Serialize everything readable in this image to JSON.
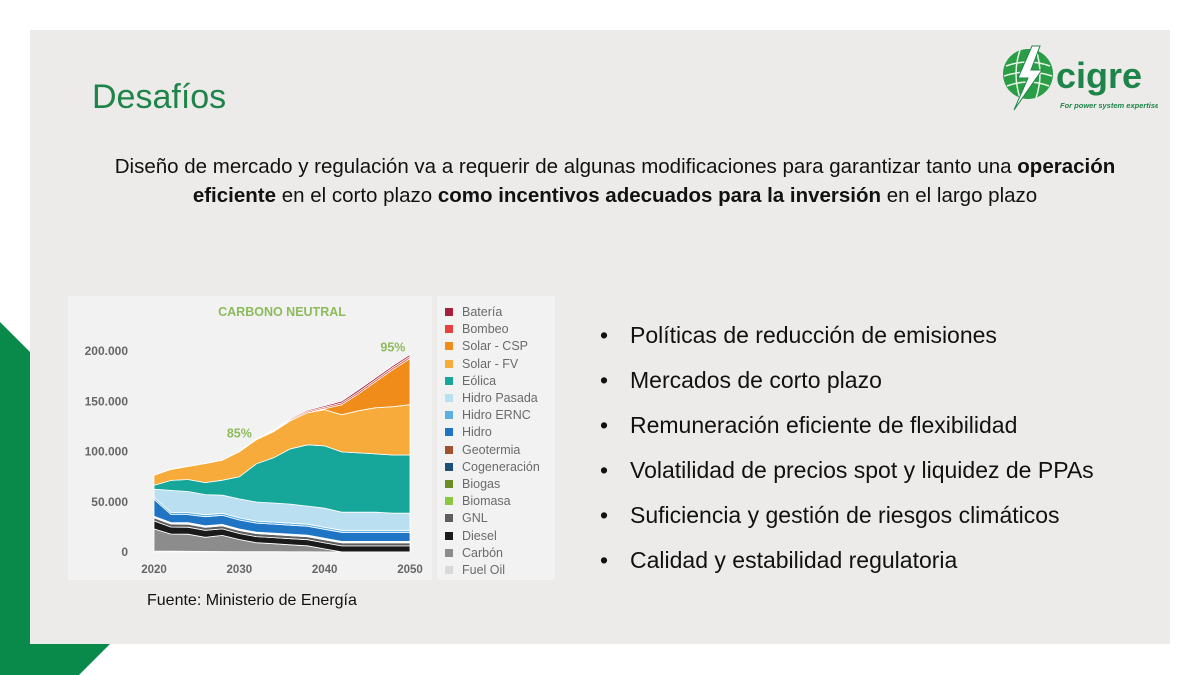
{
  "slide": {
    "title": "Desafíos",
    "intro": {
      "part1": "Diseño de mercado y regulación va a requerir de algunas modificaciones para garantizar tanto una",
      "bold1": "operación eficiente",
      "part2": "en el corto plazo",
      "bold2": "como incentivos adecuados para la inversión",
      "part3": "en el largo plazo"
    },
    "bullets": [
      "Políticas de reducción de emisiones",
      "Mercados de corto plazo",
      "Remuneración eficiente de flexibilidad",
      "Volatilidad de precios spot y liquidez de PPAs",
      "Suficiencia y gestión de riesgos climáticos",
      "Calidad y estabilidad regulatoria"
    ],
    "source": "Fuente: Ministerio de Energía"
  },
  "logo": {
    "text": "cigre",
    "tagline": "For power system expertise",
    "color": "#1e8449"
  },
  "colors": {
    "accent_green": "#1e8449",
    "corner_green": "#0a8a4a"
  },
  "chart_data": {
    "type": "area",
    "title": "CARBONO NEUTRAL",
    "x": [
      2020,
      2022,
      2024,
      2026,
      2028,
      2030,
      2032,
      2034,
      2036,
      2038,
      2040,
      2042,
      2044,
      2046,
      2048,
      2050
    ],
    "x_ticks": [
      "2020",
      "2030",
      "2040",
      "2050"
    ],
    "y_ticks": [
      "0",
      "50.000",
      "100.000",
      "150.000",
      "200.000"
    ],
    "ylim": [
      0,
      215000
    ],
    "annotations": [
      {
        "text": "85%",
        "x": 2030
      },
      {
        "text": "95%",
        "x": 2048
      }
    ],
    "series": [
      {
        "name": "Fuel Oil",
        "color": "#d9d9d9",
        "values": [
          1000,
          800,
          700,
          600,
          500,
          400,
          300,
          300,
          200,
          200,
          100,
          100,
          100,
          100,
          100,
          100
        ]
      },
      {
        "name": "Carbón",
        "color": "#8c8c8c",
        "values": [
          22000,
          17000,
          17000,
          14000,
          16000,
          12000,
          9000,
          8000,
          7000,
          6000,
          3000,
          0,
          0,
          0,
          0,
          0
        ]
      },
      {
        "name": "Diesel",
        "color": "#1a1a1a",
        "values": [
          8000,
          7000,
          7000,
          7000,
          6500,
          6000,
          6000,
          6000,
          6000,
          6000,
          6000,
          6000,
          6000,
          6000,
          6000,
          6000
        ]
      },
      {
        "name": "GNL",
        "color": "#5e5e5e",
        "values": [
          3000,
          3000,
          3000,
          3000,
          3000,
          3000,
          3000,
          3000,
          3000,
          3000,
          3000,
          3000,
          3000,
          3000,
          3000,
          3000
        ]
      },
      {
        "name": "Biomasa",
        "color": "#8dc63f",
        "values": [
          500,
          500,
          500,
          500,
          500,
          500,
          500,
          500,
          500,
          500,
          500,
          500,
          500,
          500,
          500,
          500
        ]
      },
      {
        "name": "Biogas",
        "color": "#6b8e23",
        "values": [
          300,
          300,
          300,
          300,
          300,
          300,
          300,
          300,
          300,
          300,
          300,
          300,
          300,
          300,
          300,
          300
        ]
      },
      {
        "name": "Cogeneración",
        "color": "#1f4e79",
        "values": [
          300,
          300,
          300,
          300,
          300,
          300,
          300,
          300,
          300,
          300,
          300,
          300,
          300,
          300,
          300,
          300
        ]
      },
      {
        "name": "Geotermia",
        "color": "#a0522d",
        "values": [
          400,
          400,
          400,
          400,
          400,
          400,
          400,
          400,
          400,
          400,
          400,
          400,
          400,
          400,
          400,
          400
        ]
      },
      {
        "name": "Hidro",
        "color": "#1f75c4",
        "values": [
          17000,
          8000,
          8000,
          9000,
          9000,
          9000,
          9000,
          9000,
          9000,
          9000,
          9000,
          9000,
          9000,
          9000,
          9000,
          9000
        ]
      },
      {
        "name": "Hidro ERNC",
        "color": "#5aaee0",
        "values": [
          2000,
          2000,
          2000,
          2000,
          2000,
          2000,
          2000,
          2000,
          2000,
          2000,
          2000,
          2000,
          2000,
          2000,
          2000,
          2000
        ]
      },
      {
        "name": "Hidro Pasada",
        "color": "#b9dff0",
        "values": [
          8000,
          22000,
          21000,
          20000,
          18000,
          19000,
          19000,
          19000,
          19000,
          18000,
          19000,
          18000,
          18000,
          18000,
          17000,
          17000
        ]
      },
      {
        "name": "Eólica",
        "color": "#17a79a",
        "values": [
          4000,
          10000,
          12000,
          12000,
          15000,
          22000,
          38000,
          45000,
          55000,
          61000,
          62000,
          60000,
          59000,
          58000,
          58000,
          58000
        ]
      },
      {
        "name": "Solar - FV",
        "color": "#f7ab3a",
        "values": [
          10000,
          11000,
          13000,
          19000,
          20000,
          25000,
          24000,
          26000,
          28000,
          32000,
          36000,
          37000,
          42000,
          46000,
          48000,
          50000
        ]
      },
      {
        "name": "Solar - CSP",
        "color": "#f08c1a",
        "values": [
          0,
          0,
          0,
          0,
          0,
          0,
          0,
          0,
          0,
          0,
          1000,
          10000,
          17000,
          26000,
          37000,
          46000
        ]
      },
      {
        "name": "Bombeo",
        "color": "#e8433a",
        "values": [
          0,
          0,
          0,
          0,
          0,
          0,
          500,
          800,
          1000,
          1200,
          1500,
          1800,
          2000,
          2000,
          2000,
          2000
        ]
      },
      {
        "name": "Batería",
        "color": "#a3203a",
        "values": [
          0,
          0,
          0,
          0,
          0,
          0,
          500,
          800,
          1000,
          1200,
          1500,
          1800,
          2000,
          2000,
          2000,
          2000
        ]
      }
    ],
    "legend_order": [
      "Batería",
      "Bombeo",
      "Solar - CSP",
      "Solar - FV",
      "Eólica",
      "Hidro Pasada",
      "Hidro ERNC",
      "Hidro",
      "Geotermia",
      "Cogeneración",
      "Biogas",
      "Biomasa",
      "GNL",
      "Diesel",
      "Carbón",
      "Fuel Oil"
    ],
    "legend_colors": [
      "#a3203a",
      "#e8433a",
      "#f08c1a",
      "#f7ab3a",
      "#17a79a",
      "#b9dff0",
      "#5aaee0",
      "#1f75c4",
      "#a0522d",
      "#1f4e79",
      "#6b8e23",
      "#8dc63f",
      "#5e5e5e",
      "#1a1a1a",
      "#8c8c8c",
      "#d9d9d9"
    ],
    "legend_placement": "right"
  }
}
